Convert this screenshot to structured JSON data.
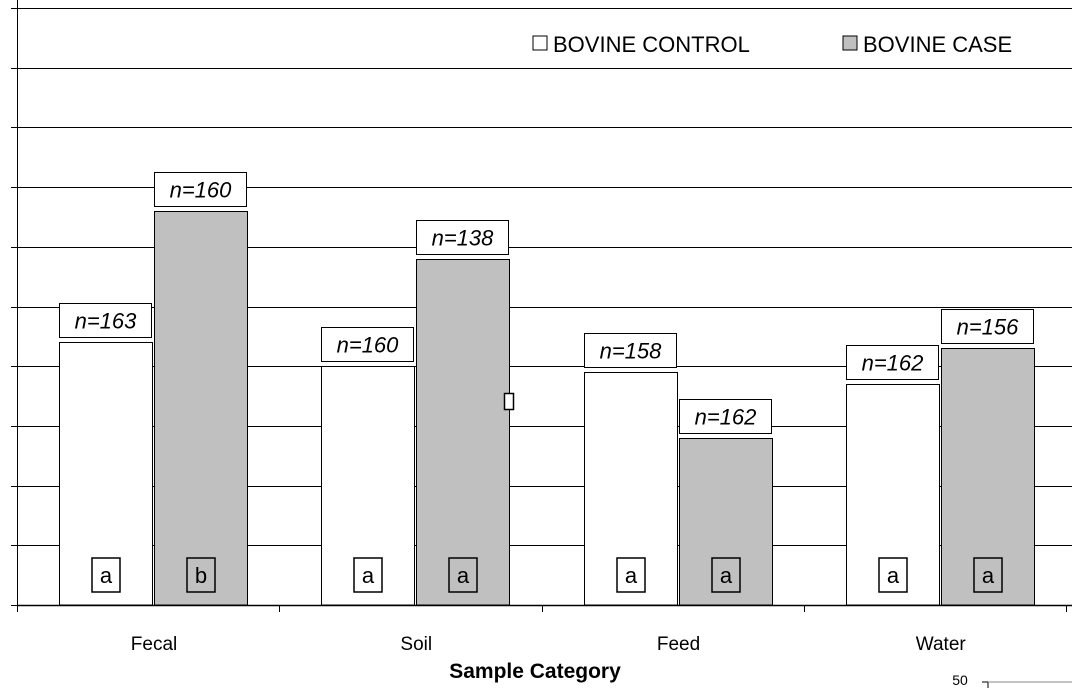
{
  "chart_data": {
    "type": "bar",
    "title": "",
    "xlabel": "Sample Category",
    "ylabel": "",
    "ylim": [
      0,
      100
    ],
    "grid": true,
    "legend_position": "top-right",
    "categories": [
      "Fecal",
      "Soil",
      "Feed",
      "Water"
    ],
    "series": [
      {
        "name": "BOVINE CONTROL",
        "color": "#ffffff",
        "values": [
          44,
          40,
          39,
          37
        ],
        "n_labels": [
          "n=163",
          "n=160",
          "n=158",
          "n=162"
        ],
        "letters": [
          "a",
          "a",
          "a",
          "a"
        ]
      },
      {
        "name": "BOVINE CASE",
        "color": "#c0c0c0",
        "values": [
          66,
          58,
          28,
          43
        ],
        "n_labels": [
          "n=160",
          "n=138",
          "n=162",
          "n=156"
        ],
        "letters": [
          "b",
          "a",
          "a",
          "a"
        ]
      }
    ],
    "corner_fragment": "50"
  }
}
